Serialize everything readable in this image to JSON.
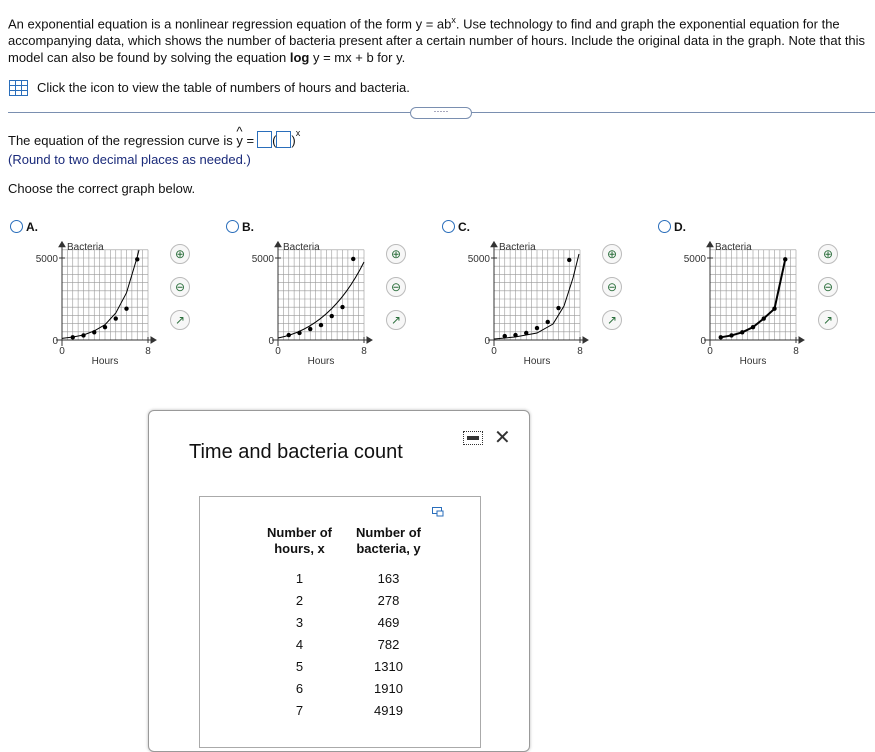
{
  "intro": [
    "An exponential equation is a nonlinear regression equation of the form y = ab",
    "x",
    ". Use technology to find and graph the exponential equation for the accompanying data, which shows the number of bacteria present after a certain number of hours. Include the original data in the graph. Note that this model can also be found by solving the equation ",
    "log",
    " y = mx + b for y."
  ],
  "table_link": "Click the icon to view the table of numbers of hours and bacteria.",
  "question": {
    "equation_prefix": "The equation of the regression curve is ",
    "y_hat": "y",
    "equals": " =",
    "exponent": "x",
    "note": "(Round to two decimal places as needed.)",
    "choose": "Choose the correct graph below."
  },
  "options": [
    {
      "label": "A.",
      "y_title": "Bacteria",
      "x_title": "Hours",
      "xlim": [
        0,
        8
      ],
      "ylim": [
        0,
        5500
      ],
      "xticks": [
        0,
        8
      ],
      "yticks": [
        0,
        5000
      ],
      "points": {
        "x": [
          1,
          2,
          3,
          4,
          5,
          6,
          7
        ],
        "y": [
          163,
          278,
          469,
          782,
          1310,
          1910,
          4919
        ]
      }
    },
    {
      "label": "B.",
      "y_title": "Bacteria",
      "x_title": "Hours",
      "xlim": [
        0,
        8
      ],
      "ylim": [
        0,
        5500
      ],
      "xticks": [
        0,
        8
      ],
      "yticks": [
        0,
        5000
      ],
      "points": {
        "x": [
          1,
          2,
          3,
          4,
          5,
          6,
          7
        ],
        "y": [
          300,
          430,
          670,
          910,
          1460,
          2010,
          4940
        ]
      }
    },
    {
      "label": "C.",
      "y_title": "Bacteria",
      "x_title": "Hours",
      "xlim": [
        0,
        8
      ],
      "ylim": [
        0,
        5500
      ],
      "xticks": [
        0,
        8
      ],
      "yticks": [
        0,
        5000
      ],
      "points": {
        "x": [
          1,
          2,
          3,
          4,
          5,
          6,
          7
        ],
        "y": [
          240,
          300,
          430,
          730,
          1100,
          1950,
          4880
        ]
      }
    },
    {
      "label": "D.",
      "y_title": "Bacteria",
      "x_title": "Hours",
      "xlim": [
        0,
        8
      ],
      "ylim": [
        0,
        5500
      ],
      "xticks": [
        0,
        8
      ],
      "yticks": [
        0,
        5000
      ],
      "points": {
        "x": [
          1,
          2,
          3,
          4,
          5,
          6,
          7
        ],
        "y": [
          163,
          278,
          469,
          782,
          1310,
          1910,
          4919
        ]
      }
    }
  ],
  "dialog": {
    "title": "Time and bacteria count",
    "headers": [
      [
        "Number of",
        "hours, x"
      ],
      [
        "Number of",
        "bacteria, y"
      ]
    ],
    "rows": [
      [
        1,
        163
      ],
      [
        2,
        278
      ],
      [
        3,
        469
      ],
      [
        4,
        782
      ],
      [
        5,
        1310
      ],
      [
        6,
        1910
      ],
      [
        7,
        4919
      ]
    ]
  }
}
